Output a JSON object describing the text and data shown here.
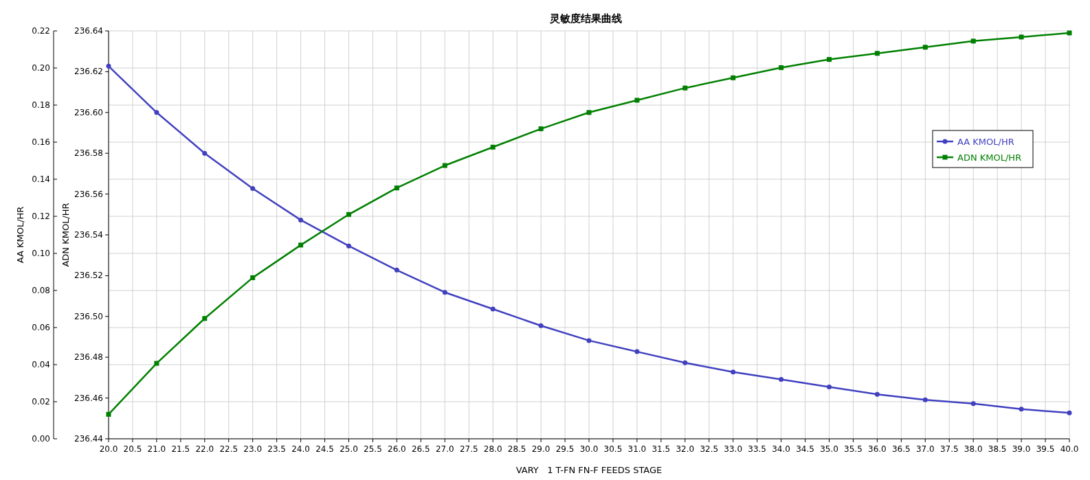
{
  "chart_data": {
    "type": "line",
    "title": "灵敏度结果曲线",
    "xlabel": "VARY   1 T-FN FN-F FEEDS STAGE",
    "ylabel": "AA KMOL/HR",
    "y2label": "ADN KMOL/HR",
    "x": [
      20,
      21,
      22,
      23,
      24,
      25,
      26,
      27,
      28,
      29,
      30,
      31,
      32,
      33,
      34,
      35,
      36,
      37,
      38,
      39,
      40
    ],
    "xlim": [
      20,
      40
    ],
    "xticks": [
      {
        "value": 20,
        "label": "20.0"
      },
      {
        "value": 20.5,
        "label": "20.5"
      },
      {
        "value": 21,
        "label": "21.0"
      },
      {
        "value": 21.5,
        "label": "21.5"
      },
      {
        "value": 22,
        "label": "22.0"
      },
      {
        "value": 22.5,
        "label": "22.5"
      },
      {
        "value": 23,
        "label": "23.0"
      },
      {
        "value": 23.5,
        "label": "23.5"
      },
      {
        "value": 24,
        "label": "24.0"
      },
      {
        "value": 24.5,
        "label": "24.5"
      },
      {
        "value": 25,
        "label": "25.0"
      },
      {
        "value": 25.5,
        "label": "25.5"
      },
      {
        "value": 26,
        "label": "26.0"
      },
      {
        "value": 26.5,
        "label": "26.5"
      },
      {
        "value": 27,
        "label": "27.0"
      },
      {
        "value": 27.5,
        "label": "27.5"
      },
      {
        "value": 28,
        "label": "28.0"
      },
      {
        "value": 28.5,
        "label": "28.5"
      },
      {
        "value": 29,
        "label": "29.0"
      },
      {
        "value": 29.5,
        "label": "29.5"
      },
      {
        "value": 30,
        "label": "30.0"
      },
      {
        "value": 30.5,
        "label": "30.5"
      },
      {
        "value": 31,
        "label": "31.0"
      },
      {
        "value": 31.5,
        "label": "31.5"
      },
      {
        "value": 32,
        "label": "32.0"
      },
      {
        "value": 32.5,
        "label": "32.5"
      },
      {
        "value": 33,
        "label": "33.0"
      },
      {
        "value": 33.5,
        "label": "33.5"
      },
      {
        "value": 34,
        "label": "34.0"
      },
      {
        "value": 34.5,
        "label": "34.5"
      },
      {
        "value": 35,
        "label": "35.0"
      },
      {
        "value": 35.5,
        "label": "35.5"
      },
      {
        "value": 36,
        "label": "36.0"
      },
      {
        "value": 36.5,
        "label": "36.5"
      },
      {
        "value": 37,
        "label": "37.0"
      },
      {
        "value": 37.5,
        "label": "37.5"
      },
      {
        "value": 38,
        "label": "38.0"
      },
      {
        "value": 38.5,
        "label": "38.5"
      },
      {
        "value": 39,
        "label": "39.0"
      },
      {
        "value": 39.5,
        "label": "39.5"
      },
      {
        "value": 40,
        "label": "40.0"
      }
    ],
    "ylim": [
      0,
      0.22
    ],
    "yticks": [
      {
        "value": 0,
        "label": "0.00"
      },
      {
        "value": 0.02,
        "label": "0.02"
      },
      {
        "value": 0.04,
        "label": "0.04"
      },
      {
        "value": 0.06,
        "label": "0.06"
      },
      {
        "value": 0.08,
        "label": "0.08"
      },
      {
        "value": 0.1,
        "label": "0.10"
      },
      {
        "value": 0.12,
        "label": "0.12"
      },
      {
        "value": 0.14,
        "label": "0.14"
      },
      {
        "value": 0.16,
        "label": "0.16"
      },
      {
        "value": 0.18,
        "label": "0.18"
      },
      {
        "value": 0.2,
        "label": "0.20"
      },
      {
        "value": 0.22,
        "label": "0.22"
      }
    ],
    "y2lim": [
      236.44,
      236.64
    ],
    "y2ticks": [
      {
        "value": 236.44,
        "label": "236.44"
      },
      {
        "value": 236.46,
        "label": "236.46"
      },
      {
        "value": 236.48,
        "label": "236.48"
      },
      {
        "value": 236.5,
        "label": "236.50"
      },
      {
        "value": 236.52,
        "label": "236.52"
      },
      {
        "value": 236.54,
        "label": "236.54"
      },
      {
        "value": 236.56,
        "label": "236.56"
      },
      {
        "value": 236.58,
        "label": "236.58"
      },
      {
        "value": 236.6,
        "label": "236.60"
      },
      {
        "value": 236.62,
        "label": "236.62"
      },
      {
        "value": 236.64,
        "label": "236.64"
      }
    ],
    "grid": true,
    "legend": "top right",
    "line_style": "solid",
    "series": [
      {
        "name": "AA KMOL/HR",
        "color": "#4040c0",
        "marker": "circle",
        "values": [
          0.201,
          0.176,
          0.154,
          0.135,
          0.118,
          0.104,
          0.091,
          0.079,
          0.07,
          0.061,
          0.053,
          0.047,
          0.041,
          0.036,
          0.032,
          0.028,
          0.024,
          0.021,
          0.019,
          0.016,
          0.014
        ]
      },
      {
        "name": "ADN KMOL/HR",
        "color": "#008000",
        "marker": "square",
        "axis": "y2",
        "values": [
          236.452,
          236.477,
          236.499,
          236.519,
          236.535,
          236.55,
          236.563,
          236.574,
          236.583,
          236.592,
          236.6,
          236.606,
          236.612,
          236.617,
          236.622,
          236.626,
          236.629,
          236.632,
          236.635,
          236.637,
          236.639
        ]
      }
    ]
  }
}
